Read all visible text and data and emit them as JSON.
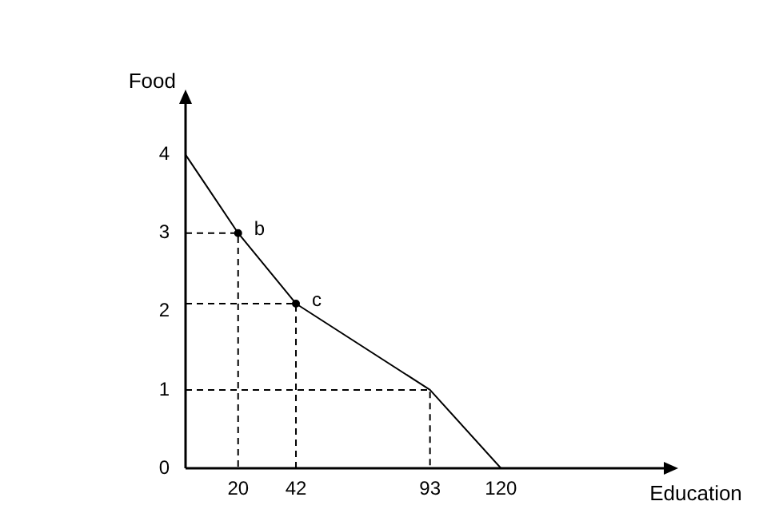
{
  "chart_data": {
    "type": "line",
    "xlabel": "Education",
    "ylabel": "Food",
    "series": [
      {
        "x": [
          0,
          20,
          42,
          93,
          120
        ],
        "values": [
          4,
          3,
          2.1,
          1,
          0
        ],
        "value_labels": [
          null,
          "b",
          "c",
          null,
          null
        ],
        "color": "#000000",
        "line_style": "solid"
      },
      {
        "x": [
          0,
          20,
          20
        ],
        "values": [
          3,
          3,
          0
        ],
        "color": "#000000",
        "line_style": "dashed"
      },
      {
        "x": [
          0,
          42,
          42
        ],
        "values": [
          2.1,
          2.1,
          0
        ],
        "color": "#000000",
        "line_style": "dashed"
      },
      {
        "x": [
          0,
          93,
          93
        ],
        "values": [
          1,
          1,
          0
        ],
        "color": "#000000",
        "line_style": "dashed"
      }
    ],
    "xlim": [
      0,
      185
    ],
    "ylim": [
      0,
      4.75
    ],
    "xticks": [
      20,
      42,
      93,
      120
    ],
    "yticks": [
      0,
      1,
      2,
      3,
      4
    ],
    "grid": false,
    "legend": false
  }
}
